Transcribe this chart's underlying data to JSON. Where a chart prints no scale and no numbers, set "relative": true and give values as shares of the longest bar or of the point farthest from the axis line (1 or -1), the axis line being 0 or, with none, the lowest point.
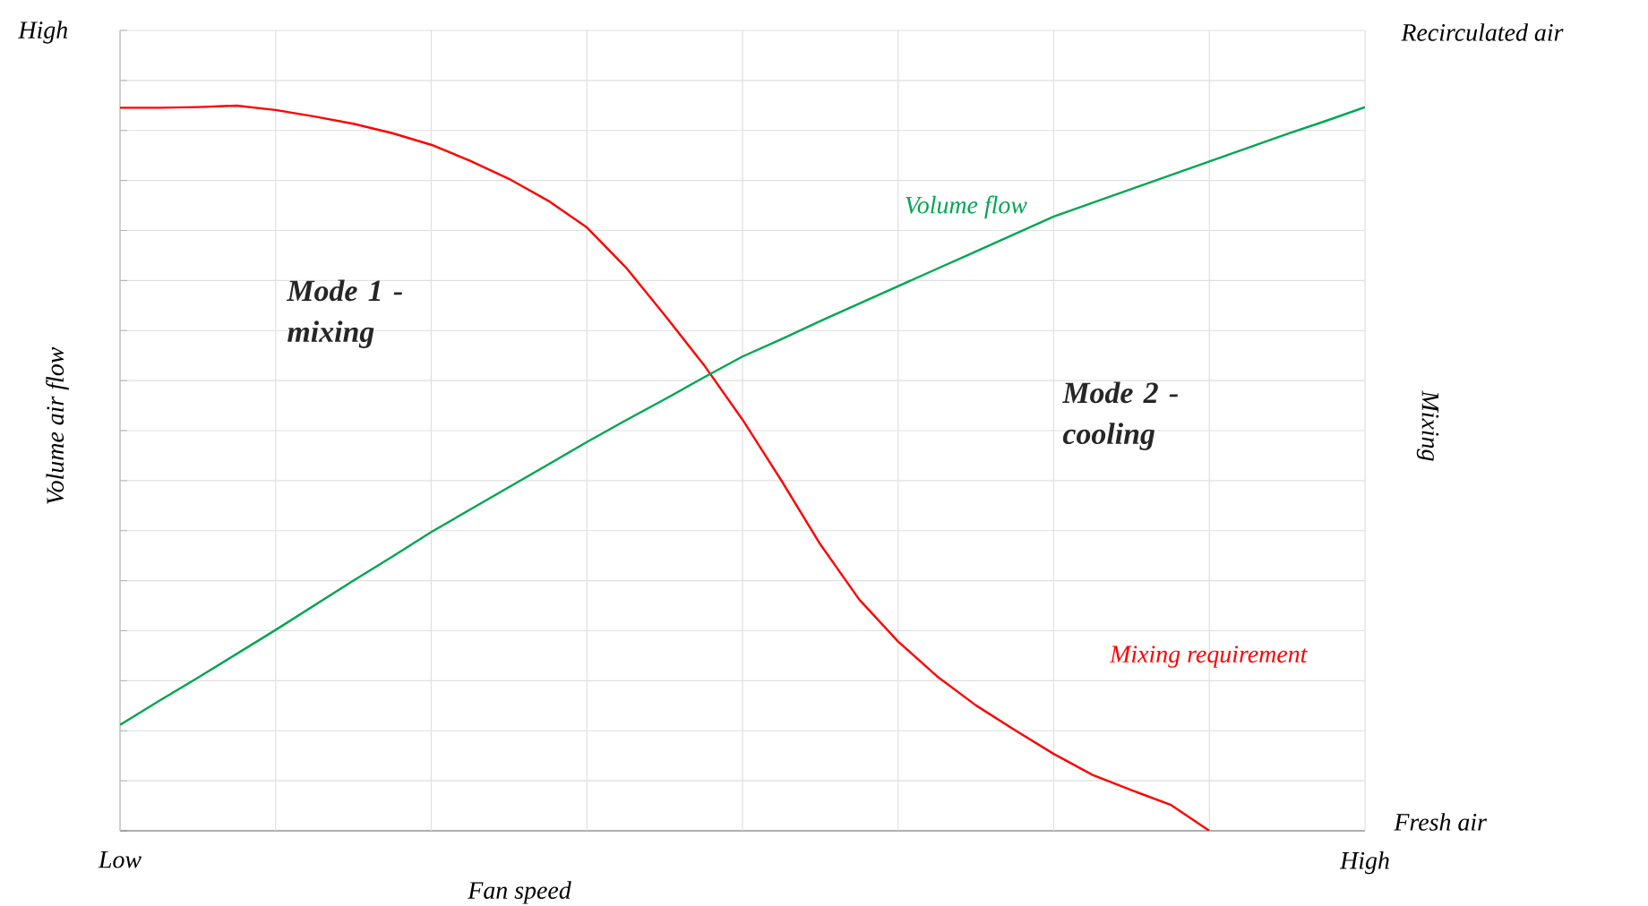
{
  "chart_data": {
    "type": "line",
    "relative": true,
    "xlabel": "Fan speed",
    "ylabel": "Volume air flow",
    "y2label": "Mixing",
    "grid": true,
    "categories": [
      "Low",
      null,
      null,
      null,
      null,
      null,
      null,
      null,
      null,
      null,
      null,
      null,
      null,
      null,
      null,
      null,
      null,
      null,
      null,
      null,
      null,
      null,
      null,
      null,
      null,
      null,
      null,
      null,
      null,
      null,
      null,
      null,
      "High"
    ],
    "annotations": [
      "High",
      "Recirculated air",
      "Fresh air",
      "Mode 1 - mixing",
      "Mode 2 - cooling"
    ],
    "series": [
      {
        "name": "Mixing requirement",
        "color": "#ff0000",
        "values": [
          0.997,
          0.997,
          0.998,
          1,
          0.994,
          0.985,
          0.975,
          0.962,
          0.946,
          0.924,
          0.899,
          0.869,
          0.832,
          0.777,
          0.711,
          0.643,
          0.567,
          0.483,
          0.395,
          0.319,
          0.261,
          0.213,
          0.173,
          0.139,
          0.106,
          0.077,
          0.056,
          0.036,
          0,
          null,
          null,
          null,
          null
        ]
      },
      {
        "name": "Volume flow",
        "color": "#00a650",
        "values": [
          0.146,
          0.179,
          0.211,
          0.244,
          0.277,
          0.311,
          0.345,
          0.378,
          0.412,
          0.443,
          0.474,
          0.505,
          0.536,
          0.566,
          0.595,
          0.625,
          0.654,
          0.678,
          0.703,
          0.727,
          0.751,
          0.775,
          0.799,
          0.823,
          0.847,
          0.866,
          0.885,
          0.904,
          0.923,
          0.942,
          0.961,
          0.979,
          0.998
        ]
      }
    ]
  }
}
